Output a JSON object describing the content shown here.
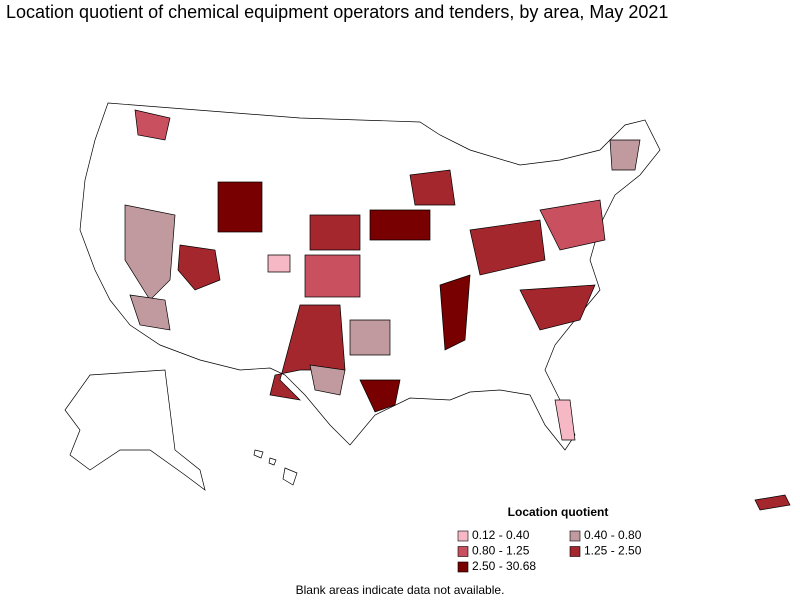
{
  "title": "Location quotient of chemical equipment operators and tenders, by area, May 2021",
  "legend": {
    "title": "Location quotient",
    "items": [
      {
        "label": "0.12 - 0.40",
        "color": "#f5b8c4"
      },
      {
        "label": "0.40 - 0.80",
        "color": "#c09a9e"
      },
      {
        "label": "0.80 - 1.25",
        "color": "#c8505f"
      },
      {
        "label": "1.25 - 2.50",
        "color": "#a3272d"
      },
      {
        "label": "2.50 - 30.68",
        "color": "#780000"
      }
    ]
  },
  "note": "Blank areas indicate data not available."
}
